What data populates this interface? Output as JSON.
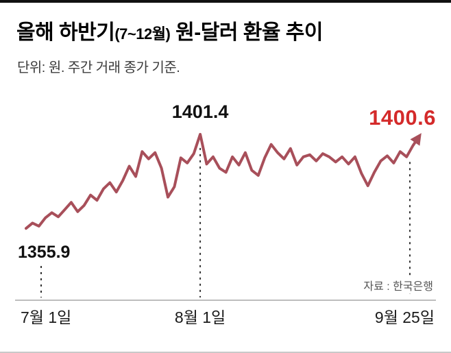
{
  "header": {
    "title_main": "올해 하반기",
    "title_paren": "(7~12월)",
    "title_rest": " 원-달러 환율 추이",
    "subtitle": "단위: 원. 주간 거래 종가 기준."
  },
  "chart_data": {
    "type": "line",
    "title": "올해 하반기(7~12월) 원-달러 환율 추이",
    "unit_note": "단위: 원. 주간 거래 종가 기준.",
    "xlabel": "",
    "ylabel": "원",
    "ylim": [
      1352,
      1405
    ],
    "grid": false,
    "legend": "none",
    "x_tick_labels": [
      "7월 1일",
      "8월 1일",
      "9월 25일"
    ],
    "series": [
      {
        "name": "원-달러 환율 (주간 거래 종가)",
        "values": [
          1355.9,
          1358.5,
          1357.0,
          1361.0,
          1363.5,
          1361.5,
          1365.0,
          1368.5,
          1364.0,
          1367.0,
          1372.0,
          1369.5,
          1375.0,
          1378.0,
          1373.5,
          1379.0,
          1386.0,
          1381.0,
          1393.0,
          1389.5,
          1392.5,
          1385.0,
          1371.0,
          1376.0,
          1390.0,
          1387.5,
          1392.0,
          1401.4,
          1387.0,
          1390.5,
          1385.0,
          1383.0,
          1390.5,
          1386.5,
          1392.5,
          1384.0,
          1381.5,
          1390.0,
          1396.5,
          1392.5,
          1389.5,
          1394.5,
          1386.5,
          1390.5,
          1391.5,
          1388.5,
          1392.0,
          1390.5,
          1388.0,
          1390.5,
          1387.0,
          1390.5,
          1382.5,
          1376.5,
          1383.0,
          1388.5,
          1391.0,
          1387.5,
          1393.0,
          1390.5,
          1396.0,
          1400.6
        ]
      }
    ],
    "annotations": {
      "start": {
        "label": "1355.9",
        "value": 1355.9,
        "x": "7월 1일"
      },
      "peak": {
        "label": "1401.4",
        "value": 1401.4,
        "x": "8월 1일"
      },
      "end": {
        "label": "1400.6",
        "value": 1400.6,
        "x": "9월 25일"
      }
    },
    "line_color": "#a84f5a",
    "end_label_color": "#d42a2a",
    "dash_color": "#333333",
    "axis_color": "#bdbdbd",
    "source": "자료 : 한국은행"
  }
}
